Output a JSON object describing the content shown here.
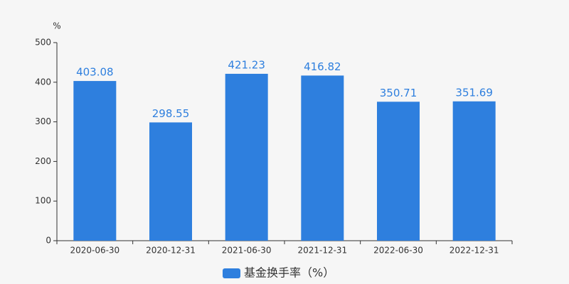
{
  "chart_data": {
    "type": "bar",
    "y_label": "%",
    "categories": [
      "2020-06-30",
      "2020-12-31",
      "2021-06-30",
      "2021-12-31",
      "2022-06-30",
      "2022-12-31"
    ],
    "series": [
      {
        "name": "基金换手率（%）",
        "color": "#2e7fde",
        "values": [
          403.08,
          298.55,
          421.23,
          416.82,
          350.71,
          351.69
        ]
      }
    ],
    "ylim": [
      0,
      500
    ],
    "yticks": [
      0,
      100,
      200,
      300,
      400,
      500
    ],
    "grid": false,
    "legend": "bottom"
  }
}
